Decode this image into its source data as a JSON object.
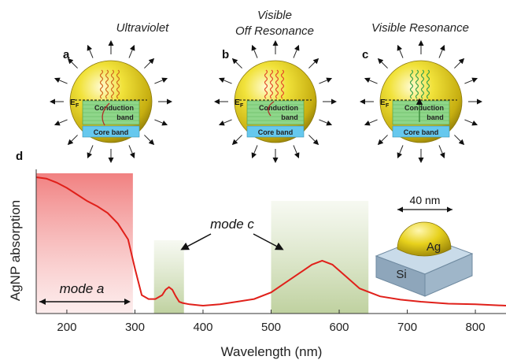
{
  "panels": [
    {
      "letter": "a",
      "title_lines": [
        "Ultraviolet"
      ],
      "conduction_lines": [
        "Conduction",
        "band"
      ],
      "core_label": "Core band",
      "ef_label": "E",
      "ef_sub": "F",
      "wave_color": "#d2691e"
    },
    {
      "letter": "b",
      "title_lines": [
        "Visible",
        "Off Resonance"
      ],
      "conduction_lines": [
        "Conduction",
        "band"
      ],
      "core_label": "Core band",
      "ef_label": "E",
      "ef_sub": "F",
      "wave_color": "#e34a2a"
    },
    {
      "letter": "c",
      "title_lines": [
        "Visible Resonance"
      ],
      "conduction_lines": [
        "Conduction",
        "band"
      ],
      "core_label": "Core band",
      "ef_label": "E",
      "ef_sub": "F",
      "wave_color": "#3aa34a"
    }
  ],
  "panel_d_letter": "d",
  "annotations": {
    "mode_a": "mode a",
    "mode_c": "mode c"
  },
  "inset": {
    "size_label": "40 nm",
    "particle_label": "Ag",
    "substrate_label": "Si"
  },
  "colors": {
    "curve": "#e0201a",
    "sphere": "#e6d21a",
    "conduction_band": "#8fd68a",
    "core_band": "#66c8ee",
    "shade_uv": "#f08080",
    "shade_visible": "#c5d6a6"
  },
  "chart_data": {
    "type": "line",
    "xlabel": "Wavelength (nm)",
    "ylabel": "AgNP absorption",
    "xlim": [
      155,
      845
    ],
    "ylim": [
      0,
      1
    ],
    "xticks": [
      200,
      300,
      400,
      500,
      600,
      700,
      800
    ],
    "grid": false,
    "shaded_bands": [
      {
        "from": 155,
        "to": 297,
        "label": "mode a"
      },
      {
        "from": 328,
        "to": 372,
        "label": "mode c"
      },
      {
        "from": 500,
        "to": 643,
        "label": "mode c"
      }
    ],
    "series": [
      {
        "x": [
          155,
          170,
          185,
          200,
          215,
          230,
          245,
          260,
          275,
          290,
          300,
          310,
          320,
          330,
          340,
          345,
          350,
          355,
          360,
          365,
          370,
          380,
          400,
          425,
          450,
          475,
          500,
          520,
          540,
          560,
          575,
          590,
          610,
          630,
          660,
          690,
          720,
          760,
          800,
          845
        ],
        "y": [
          0.97,
          0.96,
          0.93,
          0.89,
          0.84,
          0.79,
          0.75,
          0.7,
          0.62,
          0.5,
          0.28,
          0.08,
          0.05,
          0.05,
          0.08,
          0.12,
          0.14,
          0.12,
          0.07,
          0.03,
          0.02,
          0.01,
          0.0,
          0.01,
          0.03,
          0.05,
          0.1,
          0.17,
          0.24,
          0.31,
          0.34,
          0.31,
          0.22,
          0.13,
          0.07,
          0.045,
          0.03,
          0.015,
          0.01,
          0.0
        ]
      }
    ]
  }
}
